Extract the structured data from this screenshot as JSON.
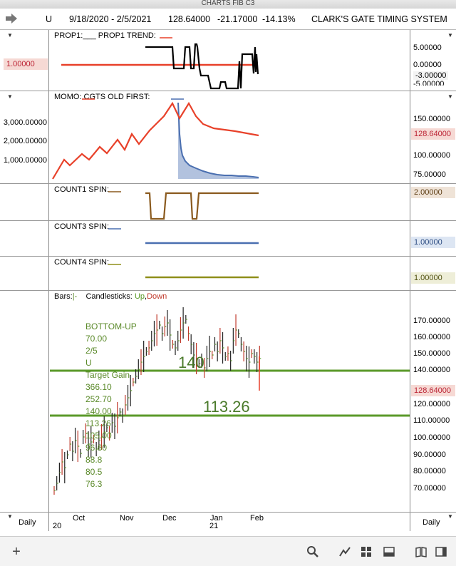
{
  "window": {
    "title": "CHARTS FIB C3"
  },
  "header": {
    "symbol": "U",
    "date_range": "9/18/2020 - 2/5/2021",
    "last": "128.64000",
    "change": "-21.17000",
    "pct": "-14.13%",
    "system": "CLARK'S GATE TIMING SYSTEM"
  },
  "pane_prop": {
    "title": "PROP1:___    PROP1 TREND:",
    "left_tag": "1.00000",
    "right_labels": [
      "5.00000",
      "0.00000",
      "-3.00000",
      "-5.00000"
    ]
  },
  "pane_momo": {
    "title": "MOMO:      CGTS OLD FIRST:",
    "left_labels": [
      "3,000.00000",
      "2,000.00000",
      "1,000.00000"
    ],
    "right_labels": [
      "150.00000",
      "100.00000",
      "75.00000"
    ],
    "right_tag": "128.64000"
  },
  "pane_count1": {
    "title": "COUNT1 SPIN:",
    "right_tag": "2.00000"
  },
  "pane_count3": {
    "title": "COUNT3 SPIN:",
    "right_tag": "1.00000"
  },
  "pane_count4": {
    "title": "COUNT4 SPIN:",
    "right_tag": "1.00000"
  },
  "pane_price": {
    "legend_bars": "Bars:",
    "legend_bars_sym": "|-",
    "legend_candles": "Candlesticks:",
    "legend_up": "Up",
    "legend_comma": ",",
    "legend_down": "Down",
    "right_labels": [
      "170.00000",
      "160.00000",
      "150.00000",
      "140.00000",
      "120.00000",
      "110.00000",
      "100.00000",
      "90.00000",
      "80.00000",
      "70.00000"
    ],
    "right_tag": "128.64000",
    "level_140": "140",
    "level_113": "113.26",
    "annotations": [
      "BOTTOM-UP",
      "70.00",
      "2/5",
      "U",
      "Target Gain",
      "366.10",
      "252.70",
      "140.00",
      "113.26",
      "105.00",
      "96.60",
      "88.8",
      "80.5",
      "76.3"
    ]
  },
  "x_axis": {
    "months": [
      "Oct",
      "Nov",
      "Dec",
      "Jan",
      "Feb"
    ],
    "years": [
      "20",
      "21"
    ],
    "period_left": "Daily",
    "period_right": "Daily"
  },
  "toolbar": {
    "add": "+"
  },
  "colors": {
    "red": "#e8412a",
    "blue": "#4a6fb0",
    "brown": "#8a5a1e",
    "olive": "#8f8f1a",
    "green": "#5b9a2a"
  }
}
